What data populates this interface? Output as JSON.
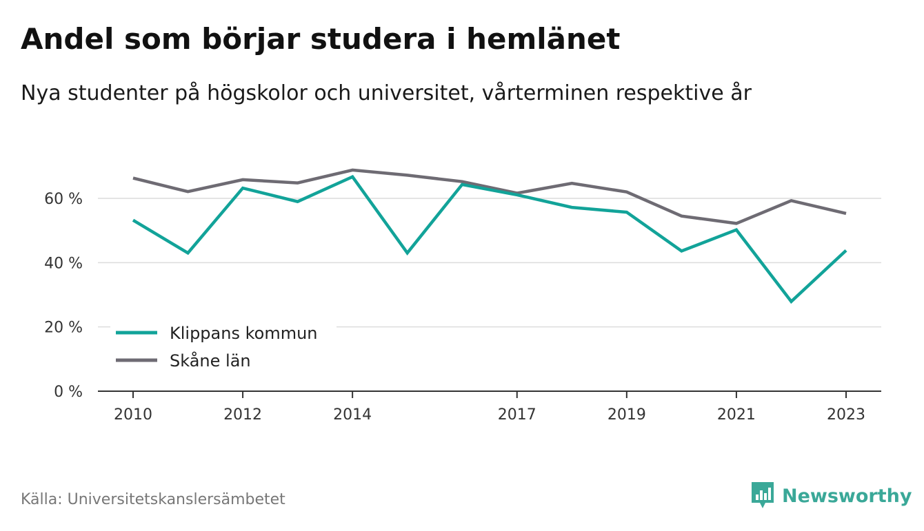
{
  "title": "Andel som börjar studera i hemlänet",
  "subtitle": "Nya studenter på högskolor och universitet, vårterminen respektive år",
  "source": "Källa: Universitetskanslersämbetet",
  "brand": {
    "name": "Newsworthy",
    "icon": "bar-chart-speech-bubble-icon",
    "color": "#3aa898"
  },
  "chart_data": {
    "type": "line",
    "x": [
      2010,
      2011,
      2012,
      2013,
      2014,
      2015,
      2016,
      2017,
      2018,
      2019,
      2020,
      2021,
      2022,
      2023
    ],
    "x_tick_values": [
      2010,
      2012,
      2014,
      2017,
      2019,
      2021,
      2023
    ],
    "x_tick_labels": [
      "2010",
      "2012",
      "2014",
      "2017",
      "2019",
      "2021",
      "2023"
    ],
    "y_tick_values": [
      0,
      20,
      40,
      60
    ],
    "y_tick_labels": [
      "0 %",
      "20 %",
      "40 %",
      "60 %"
    ],
    "ylim": [
      0,
      70
    ],
    "grid": true,
    "legend_position": "bottom-left",
    "series": [
      {
        "name": "Klippans kommun",
        "color": "#12a399",
        "values": [
          53.2,
          43.0,
          63.2,
          59.0,
          66.7,
          43.0,
          64.3,
          61.1,
          57.2,
          55.7,
          43.6,
          50.2,
          27.9,
          43.8
        ]
      },
      {
        "name": "Skåne län",
        "color": "#6e6b73",
        "values": [
          66.3,
          62.1,
          65.8,
          64.8,
          68.8,
          67.2,
          65.2,
          61.6,
          64.7,
          62.0,
          54.5,
          52.2,
          59.3,
          55.3
        ]
      }
    ]
  }
}
